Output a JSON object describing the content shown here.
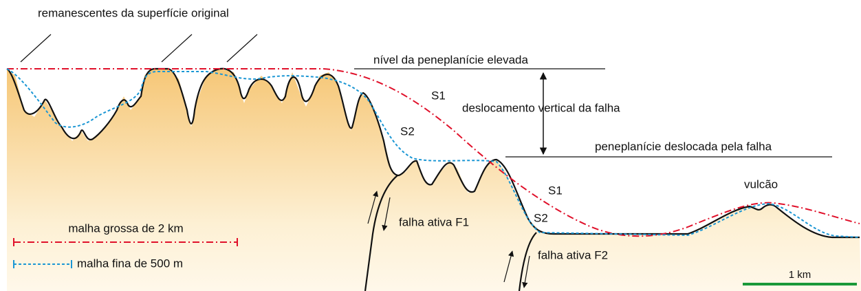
{
  "labels": {
    "remnants": "remanescentes da superfície original",
    "elevated_level": "nível da peneplanície elevada",
    "s1_upper": "S1",
    "s2_upper": "S2",
    "vertical_displacement": "deslocamento vertical da falha",
    "displaced_level": "peneplanície deslocada pela falha",
    "s1_lower": "S1",
    "s2_lower": "S2",
    "volcano": "vulcão",
    "fault_f1": "falha ativa F1",
    "fault_f2": "falha ativa F2"
  },
  "legend": [
    {
      "label": "malha grossa de 2 km",
      "color": "#e0102a"
    },
    {
      "label": "malha fina de 500 m",
      "color": "#1a96d4"
    }
  ],
  "scale_bar": {
    "label": "1 km",
    "color": "#1a9a3a"
  }
}
